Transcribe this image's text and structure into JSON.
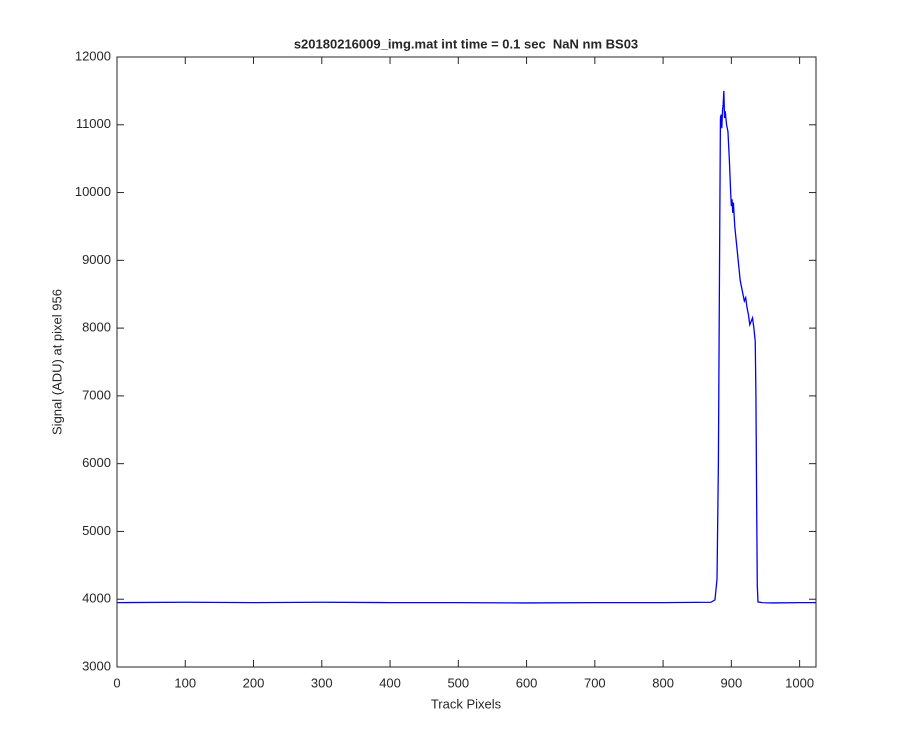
{
  "chart_data": {
    "type": "line",
    "title": "s20180216009_img.mat int time = 0.1 sec  NaN nm BS03",
    "xlabel": "Track Pixels",
    "ylabel": "Signal (ADU) at pixel 956",
    "x": [
      0,
      100,
      200,
      300,
      400,
      500,
      600,
      700,
      800,
      870,
      876,
      879,
      881,
      883,
      884,
      885,
      886,
      887,
      888,
      889,
      890,
      891,
      893,
      895,
      897,
      899,
      900,
      901,
      902,
      903,
      905,
      907,
      909,
      911,
      913,
      915,
      917,
      919,
      921,
      923,
      925,
      927,
      929,
      931,
      933,
      935,
      936,
      937,
      938,
      939,
      945,
      960,
      1000,
      1024
    ],
    "series": [
      {
        "name": "signal",
        "color": "#0000ff",
        "values": [
          3950,
          3955,
          3950,
          3955,
          3950,
          3950,
          3945,
          3950,
          3950,
          3955,
          3990,
          4300,
          6000,
          9500,
          11100,
          11150,
          10950,
          11200,
          11300,
          11500,
          11100,
          11200,
          11000,
          10900,
          10500,
          10000,
          9800,
          9900,
          9700,
          9850,
          9500,
          9300,
          9100,
          8900,
          8700,
          8600,
          8500,
          8400,
          8450,
          8300,
          8200,
          8050,
          8100,
          8150,
          8000,
          7800,
          7000,
          5500,
          4200,
          3960,
          3950,
          3945,
          3950,
          3950
        ]
      }
    ],
    "xlim": [
      0,
      1024
    ],
    "xticks": [
      0,
      100,
      200,
      300,
      400,
      500,
      600,
      700,
      800,
      900,
      1000
    ],
    "ylim": [
      3000,
      12000
    ],
    "yticks": [
      3000,
      4000,
      5000,
      6000,
      7000,
      8000,
      9000,
      10000,
      11000,
      12000
    ]
  }
}
